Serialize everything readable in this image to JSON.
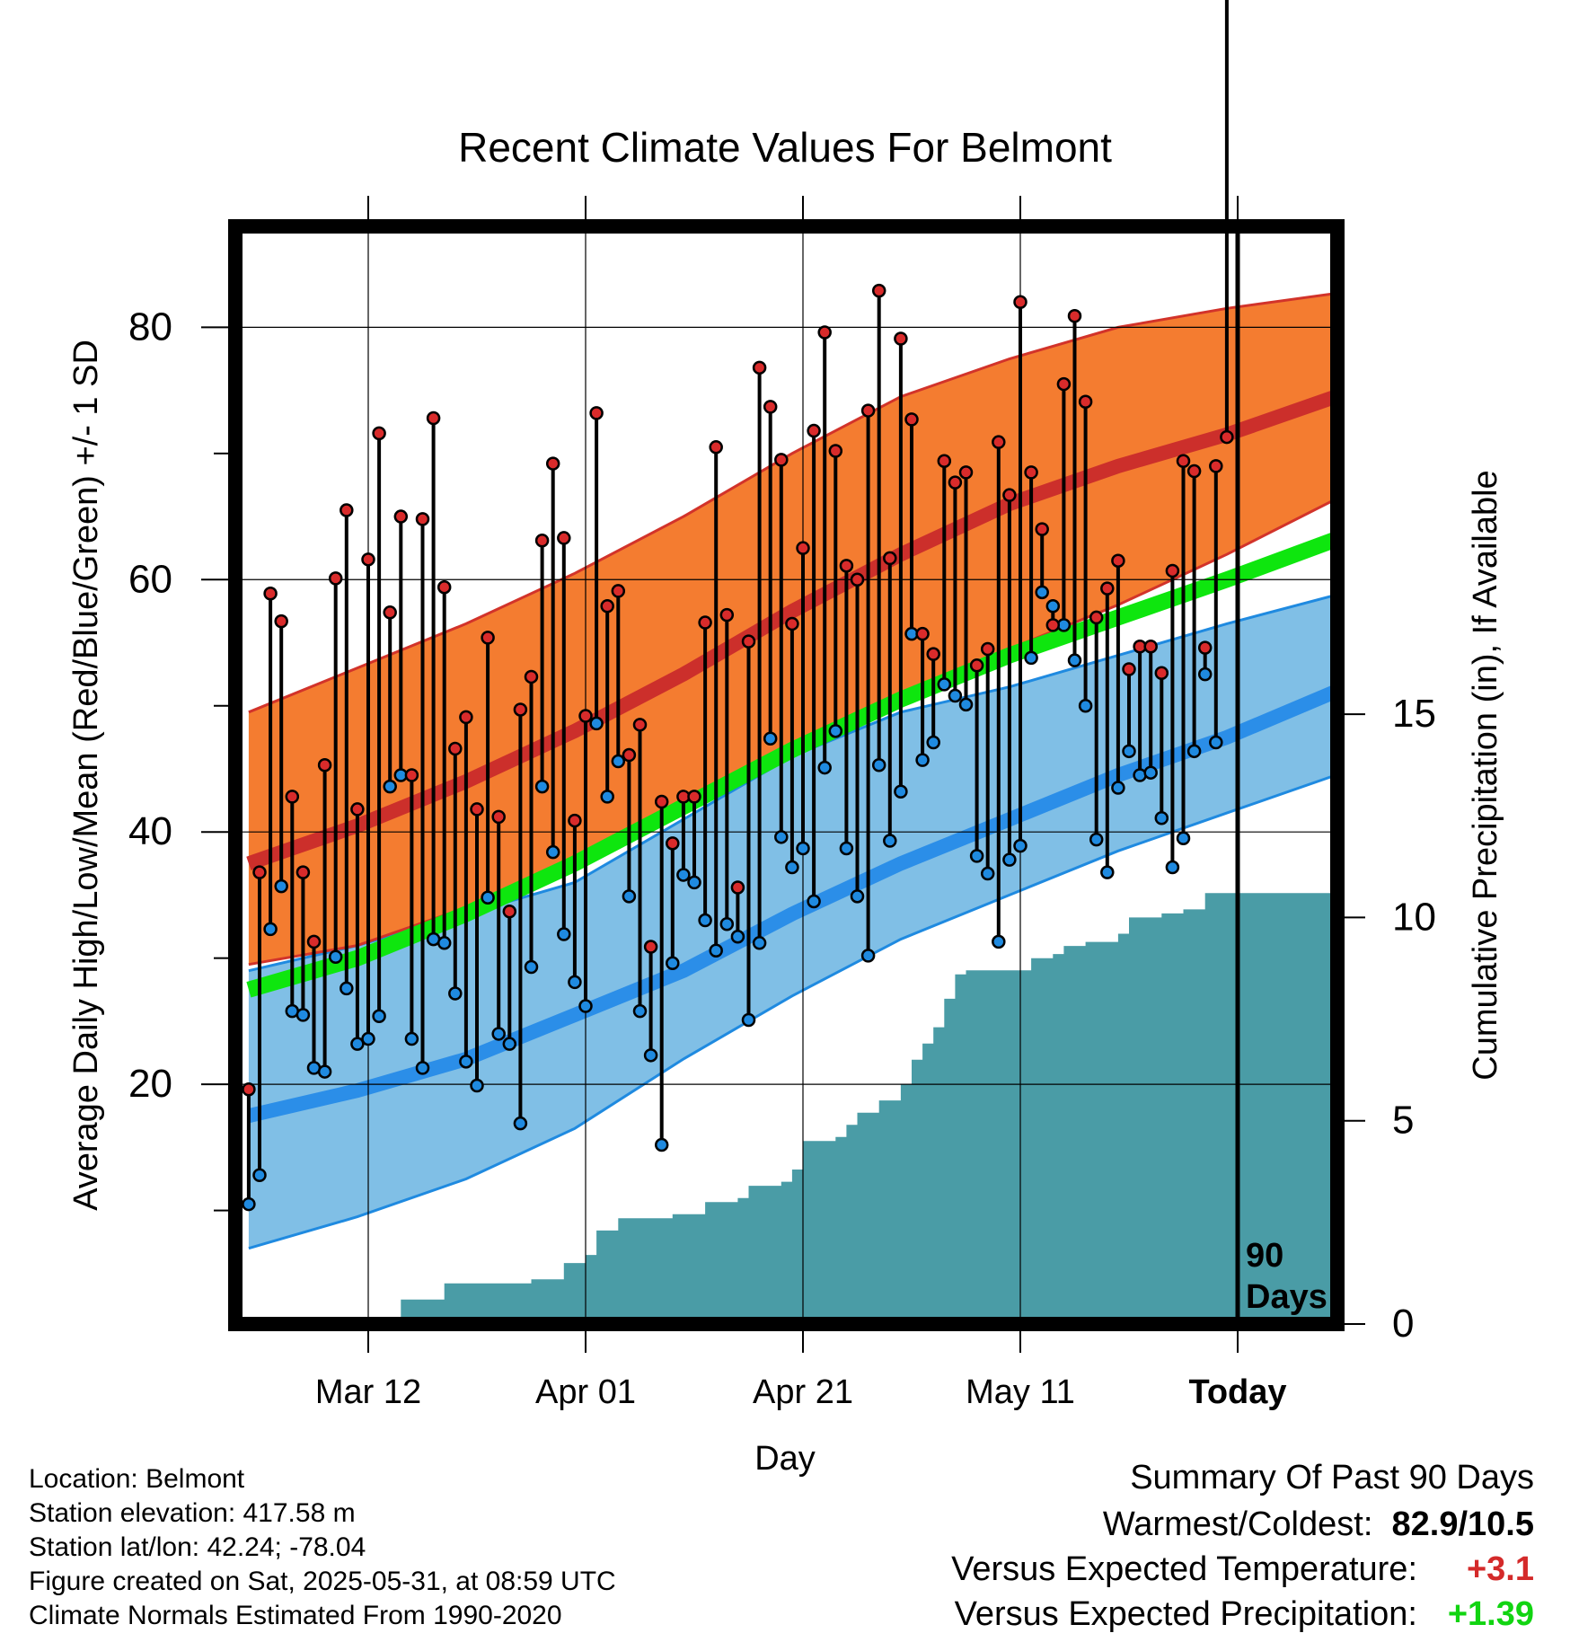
{
  "chart_data": {
    "type": "line",
    "title": "Recent Climate Values For Belmont",
    "xlabel": "Day",
    "ylabel": "Average Daily High/Low/Mean (Red/Blue/Green) +/- 1 SD",
    "y2label": "Cumulative Precipitation (in), If Available",
    "ylim": [
      1,
      88
    ],
    "y2lim": [
      0,
      27
    ],
    "yticks": [
      "20",
      "40",
      "60",
      "80"
    ],
    "y2ticks": [
      "0",
      "5",
      "10",
      "15"
    ],
    "xticks": [
      "Mar 12",
      "Apr 01",
      "Apr 21",
      "May 11",
      "Today"
    ],
    "x_start": "2025-03-01",
    "today": "2025-05-31",
    "today_marker_label": [
      "90",
      "Days"
    ],
    "grid": true,
    "colors": {
      "high_band": "#f47c30",
      "high_band_edge": "#d2332a",
      "high_mean": "#cc2f2b",
      "low_band": "#80bfe6",
      "low_band_edge": "#1f8ae0",
      "low_mean": "#2b8ee8",
      "mean": "#0ee60e",
      "precip": "#4a9ca6",
      "high_dot": "#d92b2b",
      "low_dot": "#1f8ae0"
    },
    "normals": {
      "x": [
        "2025-03-01",
        "2025-03-11",
        "2025-03-21",
        "2025-03-31",
        "2025-04-10",
        "2025-04-20",
        "2025-04-30",
        "2025-05-10",
        "2025-05-20",
        "2025-05-30",
        "2025-06-10"
      ],
      "high_mean": [
        37.5,
        40.5,
        44.0,
        48.0,
        52.5,
        57.5,
        62.0,
        66.0,
        69.0,
        71.5,
        74.8
      ],
      "high_plus_sd": [
        49.5,
        53.0,
        56.5,
        60.5,
        65.0,
        70.0,
        74.5,
        77.5,
        80.0,
        81.5,
        82.8
      ],
      "high_minus_sd": [
        29.5,
        31.0,
        34.0,
        38.0,
        42.0,
        46.5,
        51.0,
        54.5,
        58.0,
        62.0,
        66.8
      ],
      "low_mean": [
        17.5,
        19.5,
        22.0,
        25.5,
        29.0,
        33.5,
        37.5,
        41.0,
        44.5,
        47.5,
        51.5
      ],
      "low_plus_sd": [
        29.0,
        31.0,
        33.5,
        36.0,
        41.0,
        46.0,
        49.5,
        51.5,
        54.0,
        56.5,
        59.0
      ],
      "low_minus_sd": [
        7.0,
        9.5,
        12.5,
        16.5,
        22.0,
        27.0,
        31.5,
        35.0,
        38.5,
        41.5,
        44.8
      ],
      "mean": [
        27.5,
        30.0,
        33.5,
        37.5,
        42.0,
        46.5,
        50.5,
        54.0,
        57.0,
        60.0,
        63.5
      ]
    },
    "series": [
      {
        "name": "High",
        "values": [
          19.6,
          36.8,
          58.9,
          56.7,
          42.8,
          36.8,
          31.3,
          45.3,
          60.1,
          65.5,
          41.8,
          61.6,
          71.6,
          57.4,
          65.0,
          44.5,
          64.8,
          72.8,
          59.4,
          46.6,
          49.1,
          41.8,
          55.4,
          41.2,
          33.7,
          49.7,
          52.3,
          63.1,
          69.2,
          63.3,
          40.9,
          49.2,
          73.2,
          57.9,
          59.1,
          46.1,
          48.5,
          30.9,
          42.4,
          39.1,
          42.8,
          42.8,
          56.6,
          70.5,
          57.2,
          35.6,
          55.1,
          76.8,
          73.7,
          69.5,
          56.5,
          62.5,
          71.8,
          79.6,
          70.2,
          61.1,
          60.0,
          73.4,
          82.9,
          61.7,
          79.1,
          72.7,
          55.7,
          54.1,
          69.4,
          67.7,
          68.5,
          53.2,
          54.5,
          70.9,
          66.7,
          82.0,
          68.5,
          64.0,
          56.4,
          75.5,
          80.9,
          74.1,
          57.0,
          59.3,
          61.5,
          52.9,
          54.7,
          54.7,
          52.6,
          60.7,
          69.4,
          68.6,
          54.6,
          69.0,
          71.3
        ]
      },
      {
        "name": "Low",
        "values": [
          10.5,
          12.8,
          32.3,
          35.7,
          25.8,
          25.5,
          21.3,
          21.0,
          30.1,
          27.6,
          23.2,
          23.6,
          25.4,
          43.6,
          44.5,
          23.6,
          21.3,
          31.5,
          31.2,
          27.2,
          21.8,
          19.9,
          34.8,
          24.0,
          23.2,
          16.9,
          29.3,
          43.6,
          38.4,
          31.9,
          28.1,
          26.2,
          48.6,
          42.8,
          45.6,
          34.9,
          25.8,
          22.3,
          15.2,
          29.6,
          36.6,
          36.0,
          33.0,
          30.6,
          32.7,
          31.7,
          25.1,
          31.2,
          47.4,
          39.6,
          37.2,
          38.7,
          34.5,
          45.1,
          48.0,
          38.7,
          34.9,
          30.2,
          45.3,
          39.3,
          43.2,
          55.7,
          45.7,
          47.1,
          51.7,
          50.8,
          50.1,
          38.1,
          36.7,
          31.3,
          37.8,
          38.9,
          53.8,
          59.0,
          57.9,
          56.4,
          53.6,
          50.0,
          39.4,
          36.8,
          43.5,
          46.4,
          44.5,
          44.7,
          41.1,
          37.2,
          39.5,
          46.4,
          52.5,
          47.1
        ]
      }
    ],
    "precip_cumulative": {
      "x": [
        "2025-03-14",
        "2025-03-15",
        "2025-03-18",
        "2025-03-19",
        "2025-03-27",
        "2025-03-30",
        "2025-04-01",
        "2025-04-02",
        "2025-04-04",
        "2025-04-09",
        "2025-04-12",
        "2025-04-15",
        "2025-04-16",
        "2025-04-19",
        "2025-04-20",
        "2025-04-21",
        "2025-04-24",
        "2025-04-25",
        "2025-04-26",
        "2025-04-28",
        "2025-04-30",
        "2025-05-01",
        "2025-05-02",
        "2025-05-03",
        "2025-05-04",
        "2025-05-05",
        "2025-05-06",
        "2025-05-11",
        "2025-05-12",
        "2025-05-14",
        "2025-05-15",
        "2025-05-17",
        "2025-05-20",
        "2025-05-21",
        "2025-05-24",
        "2025-05-26",
        "2025-05-28",
        "2025-05-31"
      ],
      "values": [
        0.0,
        0.6,
        0.6,
        1.0,
        1.1,
        1.5,
        1.7,
        2.3,
        2.6,
        2.7,
        3.0,
        3.1,
        3.4,
        3.5,
        3.8,
        4.5,
        4.6,
        4.9,
        5.2,
        5.5,
        5.9,
        6.5,
        6.9,
        7.3,
        8.0,
        8.6,
        8.7,
        8.7,
        9.0,
        9.1,
        9.3,
        9.4,
        9.6,
        10.0,
        10.1,
        10.2,
        10.6,
        10.6
      ]
    }
  },
  "info": {
    "location": "Location: Belmont",
    "elevation": "Station elevation: 417.58 m",
    "latlon": "Station lat/lon: 42.24; -78.04",
    "created": "Figure created on Sat, 2025-05-31, at 08:59 UTC",
    "normals": "Climate Normals Estimated From 1990-2020"
  },
  "summary": {
    "heading": "Summary Of Past 90 Days",
    "warmest_label": "Warmest/Coldest:",
    "warmest_value": "82.9/10.5",
    "temp_label": "Versus Expected Temperature:",
    "temp_value": "+3.1",
    "temp_color": "#d42a2a",
    "precip_label": "Versus Expected Precipitation:",
    "precip_value": "+1.39",
    "precip_color": "#11d411"
  }
}
